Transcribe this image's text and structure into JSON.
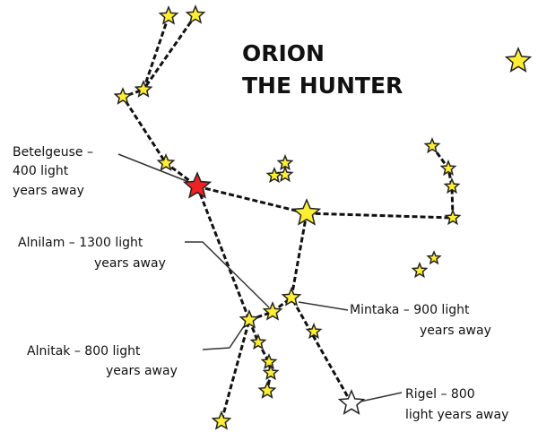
{
  "title": {
    "line1": "ORION",
    "line2": "THE HUNTER"
  },
  "labels": [
    {
      "lines": [
        "Betelgeuse –",
        "400 light",
        "years away"
      ]
    },
    {
      "lines": [
        "Alnilam – 1300 light",
        "years away"
      ]
    },
    {
      "lines": [
        "Mintaka – 900 light",
        "years away"
      ]
    },
    {
      "lines": [
        "Alnitak – 800 light",
        "years away"
      ]
    },
    {
      "lines": [
        "Rigel – 800",
        "light years away"
      ]
    }
  ]
}
